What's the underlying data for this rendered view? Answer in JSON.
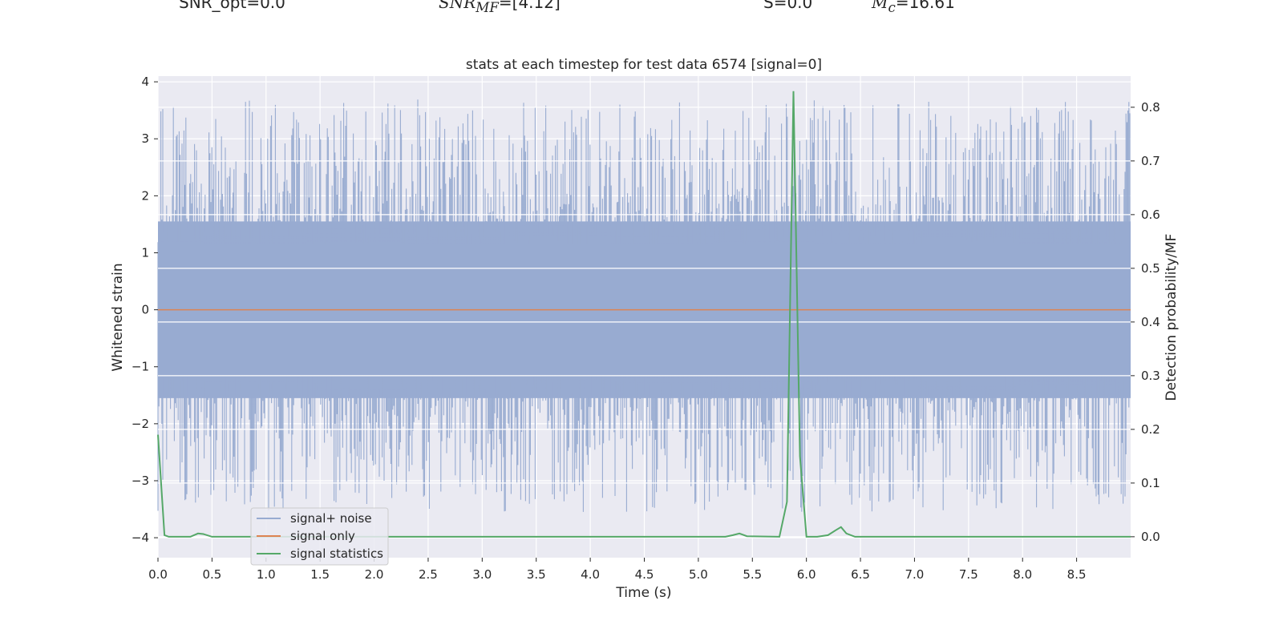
{
  "header": {
    "snr_opt": "SNR_opt=0.0",
    "snr_mf_prefix": "SNR",
    "snr_mf_sub": "MF",
    "snr_mf_value": "=[4.12]",
    "s_value": "S=0.0",
    "mc_prefix": "M",
    "mc_sub": "c",
    "mc_value": "=16.61"
  },
  "chart_data": {
    "type": "line",
    "title": "stats at each timestep for test data 6574 [signal=0]",
    "xlabel": "Time (s)",
    "ylabel_left": "Whitened strain",
    "ylabel_right": "Detection probability/MF",
    "xlim": [
      0.0,
      9.0
    ],
    "ylim_left": [
      -4.35,
      4.1
    ],
    "ylim_right": [
      -0.039,
      0.858
    ],
    "xticks": [
      "0.0",
      "0.5",
      "1.0",
      "1.5",
      "2.0",
      "2.5",
      "3.0",
      "3.5",
      "4.0",
      "4.5",
      "5.0",
      "5.5",
      "6.0",
      "6.5",
      "7.0",
      "7.5",
      "8.0",
      "8.5"
    ],
    "yticks_left": [
      "4",
      "3",
      "2",
      "1",
      "0",
      "−1",
      "−2",
      "−3",
      "−4"
    ],
    "yticks_right": [
      "0.8",
      "0.7",
      "0.6",
      "0.5",
      "0.4",
      "0.3",
      "0.2",
      "0.1",
      "0.0"
    ],
    "legend_position": "lower-left",
    "grid": true,
    "colors": {
      "background": "#eaeaf2",
      "grid": "#ffffff",
      "signal_noise": "#98abd1",
      "signal_only": "#dd8452",
      "signal_statistics": "#55a868"
    },
    "series": [
      {
        "name": "signal+ noise",
        "axis": "left",
        "description": "whitened strain noise, amplitude within about [-4, 3.7]",
        "envelope": {
          "core_low": -1.55,
          "core_high": 1.55,
          "max": 3.7,
          "min": -3.55
        }
      },
      {
        "name": "signal only",
        "axis": "left",
        "x": [
          0.0,
          9.0
        ],
        "y": [
          0.0,
          0.0
        ]
      },
      {
        "name": "signal statistics",
        "axis": "right",
        "x": [
          0.0,
          0.06,
          0.1,
          0.3,
          0.37,
          0.42,
          0.5,
          5.25,
          5.32,
          5.38,
          5.45,
          5.75,
          5.82,
          5.88,
          5.94,
          6.0,
          6.1,
          6.2,
          6.27,
          6.32,
          6.37,
          6.45,
          6.5,
          9.0
        ],
        "y": [
          0.19,
          0.003,
          0.0,
          0.0,
          0.006,
          0.005,
          0.0,
          0.0,
          0.003,
          0.006,
          0.001,
          0.0,
          0.065,
          0.83,
          0.15,
          0.0,
          0.0,
          0.003,
          0.012,
          0.018,
          0.006,
          0.0,
          0.0,
          0.0
        ]
      }
    ]
  }
}
